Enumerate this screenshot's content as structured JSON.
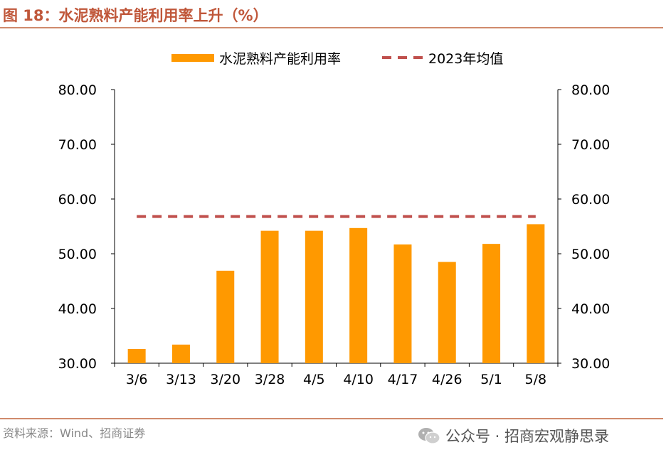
{
  "figure": {
    "title": "图 18：水泥熟料产能利用率上升（%）",
    "source": "资料来源：Wind、招商证券",
    "watermark": "公众号 · 招商宏观静思录"
  },
  "colors": {
    "bar": "#FF9900",
    "avg_line": "#C0504D",
    "title": "#C0573A",
    "rule": "#D08A6C"
  },
  "chart_data": {
    "type": "bar",
    "categories": [
      "3/6",
      "3/13",
      "3/20",
      "3/28",
      "4/5",
      "4/10",
      "4/17",
      "4/26",
      "5/1",
      "5/8"
    ],
    "series": [
      {
        "name": "水泥熟料产能利用率",
        "type": "bar",
        "values": [
          32.6,
          33.4,
          46.9,
          54.2,
          54.2,
          54.7,
          51.7,
          48.5,
          51.8,
          55.4
        ]
      },
      {
        "name": "2023年均值",
        "type": "line",
        "style": "dashed",
        "values": [
          56.8,
          56.8,
          56.8,
          56.8,
          56.8,
          56.8,
          56.8,
          56.8,
          56.8,
          56.8
        ]
      }
    ],
    "ylim": [
      30,
      80
    ],
    "yticks": [
      "30.00",
      "40.00",
      "50.00",
      "60.00",
      "70.00",
      "80.00"
    ],
    "secondary_yticks": [
      "30.00",
      "40.00",
      "50.00",
      "60.00",
      "70.00",
      "80.00"
    ],
    "legend_position": "top",
    "grid": false
  }
}
